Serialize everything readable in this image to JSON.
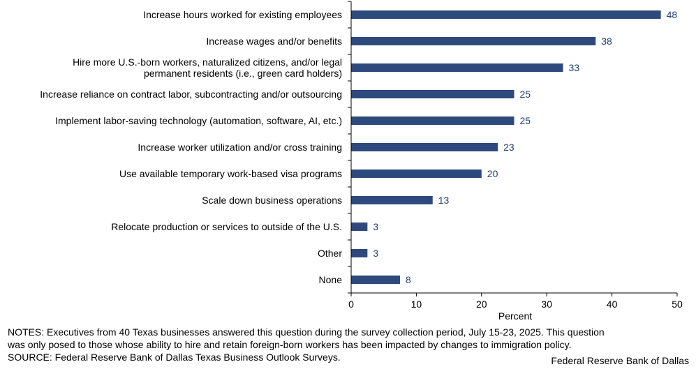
{
  "chart_data": {
    "type": "bar",
    "orientation": "horizontal",
    "categories": [
      [
        "Increase hours worked for existing employees"
      ],
      [
        "Increase wages and/or benefits"
      ],
      [
        "Hire more U.S.-born workers, naturalized citizens, and/or legal",
        "permanent residents (i.e., green card holders)"
      ],
      [
        "Increase reliance on contract labor, subcontracting and/or outsourcing"
      ],
      [
        "Implement labor-saving technology (automation, software, AI, etc.)"
      ],
      [
        "Increase worker utilization and/or cross training"
      ],
      [
        "Use available temporary work-based visa programs"
      ],
      [
        "Scale down business operations"
      ],
      [
        "Relocate production or services to outside of the U.S."
      ],
      [
        "Other"
      ],
      [
        "None"
      ]
    ],
    "values": [
      47.5,
      37.5,
      32.5,
      25,
      25,
      22.5,
      20,
      12.5,
      2.5,
      2.5,
      7.5
    ],
    "value_labels": [
      "48",
      "38",
      "33",
      "25",
      "25",
      "23",
      "20",
      "13",
      "3",
      "3",
      "8"
    ],
    "xlabel": "Percent",
    "xlim": [
      0,
      50
    ],
    "xticks": [
      "0",
      "10",
      "20",
      "30",
      "40",
      "50"
    ],
    "bar_color": "#2e4a7d",
    "label_color": "#1f3f73",
    "grid": false
  },
  "notes": {
    "line1": "NOTES: Executives from 40 Texas businesses answered this question during the survey collection period, July 15-23, 2025. This question",
    "line2": "was only posed to those whose ability to hire and retain foreign-born workers has been impacted by changes to immigration policy.",
    "line3": "SOURCE: Federal Reserve Bank of Dallas Texas Business Outlook Surveys."
  },
  "credit": "Federal Reserve Bank of Dallas"
}
